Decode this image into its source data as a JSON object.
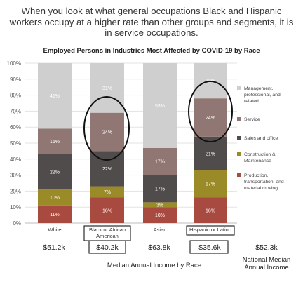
{
  "headline": "When you look at what general occupations Black and Hispanic workers occupy at a higher rate than other groups and segments, it is in service occupations.",
  "chart_data": {
    "type": "bar",
    "stacked": true,
    "title": "Employed Persons in Industries Most Affected by COVID-19 by Race",
    "xlabel": "Median Annual Income by Race",
    "ylabel": "",
    "ylim": [
      0,
      100
    ],
    "yticks": [
      "0%",
      "10%",
      "20%",
      "30%",
      "40%",
      "50%",
      "60%",
      "70%",
      "80%",
      "90%",
      "100%"
    ],
    "categories": [
      "White",
      "Black or African American",
      "Asian",
      "Hispanic or Latino"
    ],
    "category_display": [
      "White",
      "Black or African\nAmerican",
      "Asian",
      "Hispanic or Latino"
    ],
    "incomes": [
      "$51.2k",
      "$40.2k",
      "$63.8k",
      "$35.6k"
    ],
    "boxed_categories": [
      1,
      3
    ],
    "circled_series": "Service",
    "series": [
      {
        "name": "Production, transportation, and material moving",
        "color": "#a84a3f",
        "values": [
          11,
          16,
          10,
          16
        ],
        "labels": [
          "11%",
          "16%",
          "10%",
          "16%"
        ]
      },
      {
        "name": "Construction & Maintenance",
        "color": "#9b8a28",
        "values": [
          10,
          7,
          3,
          17
        ],
        "labels": [
          "10%",
          "7%",
          "3%",
          "17%"
        ]
      },
      {
        "name": "Sales and office",
        "color": "#514c4c",
        "values": [
          22,
          22,
          17,
          21
        ],
        "labels": [
          "22%",
          "22%",
          "17%",
          "21%"
        ]
      },
      {
        "name": "Service",
        "color": "#917773",
        "values": [
          16,
          24,
          17,
          24
        ],
        "labels": [
          "16%",
          "24%",
          "17%",
          "24%"
        ]
      },
      {
        "name": "Management, professional, and related",
        "color": "#cfcfcf",
        "values": [
          41,
          31,
          53,
          22
        ],
        "labels": [
          "41%",
          "31%",
          "53%",
          "22%"
        ]
      }
    ],
    "legend_position": "right",
    "legend_order": [
      "Management, professional, and related",
      "Service",
      "Sales and office",
      "Construction & Maintenance",
      "Production, transportation, and material moving"
    ]
  },
  "national": {
    "income": "$52.3k",
    "label": "National Median Annual Income"
  }
}
